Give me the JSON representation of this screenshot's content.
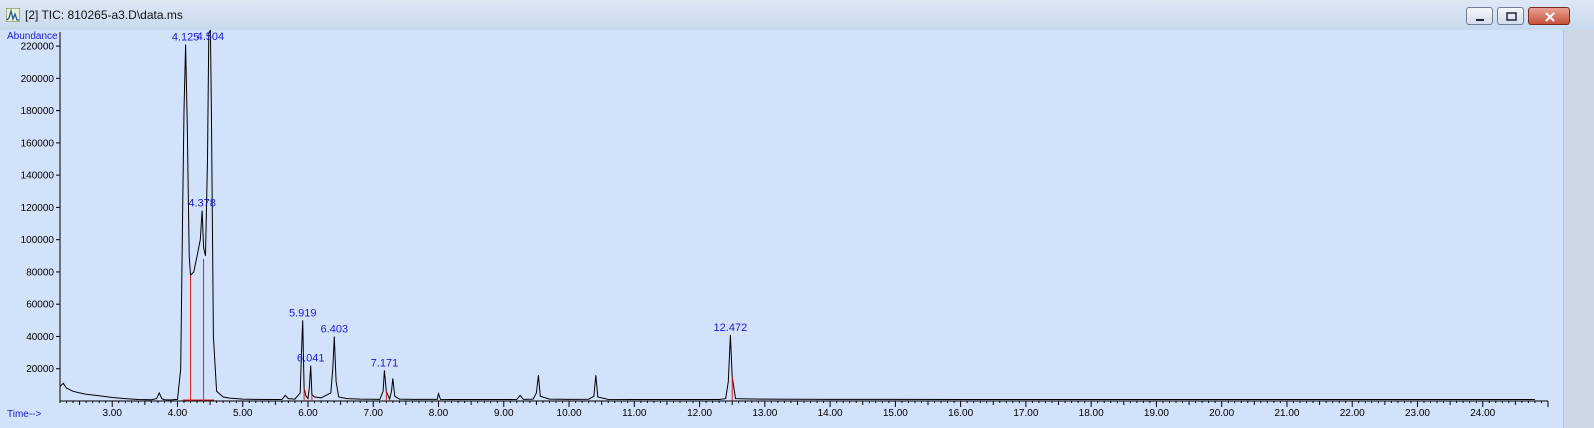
{
  "window": {
    "title": "[2] TIC: 810265-a3.D\\data.ms",
    "icon": "chromatogram-app-icon",
    "buttons": [
      "minimize",
      "restore",
      "close"
    ]
  },
  "chart_data": {
    "type": "line",
    "title": "",
    "ylabel": "Abundance",
    "xlabel": "Time-->",
    "xlim": [
      2.2,
      25.0
    ],
    "ylim": [
      0,
      225000
    ],
    "x_ticks": [
      "3.00",
      "4.00",
      "5.00",
      "6.00",
      "7.00",
      "8.00",
      "9.00",
      "10.00",
      "11.00",
      "12.00",
      "13.00",
      "14.00",
      "15.00",
      "16.00",
      "17.00",
      "18.00",
      "19.00",
      "20.00",
      "21.00",
      "22.00",
      "23.00",
      "24.00"
    ],
    "y_ticks": [
      "20000",
      "40000",
      "60000",
      "80000",
      "100000",
      "120000",
      "140000",
      "160000",
      "180000",
      "200000",
      "220000"
    ],
    "grid": false,
    "colors": {
      "trace": "#000000",
      "label": "#1a1ad8",
      "integration": "#e02020",
      "background": "#d3e2fb"
    },
    "series": [
      {
        "x": [
          2.2,
          2.25,
          2.3,
          2.4,
          2.5,
          2.6,
          2.8,
          3.0,
          3.2,
          3.4,
          3.6,
          3.68,
          3.72,
          3.76,
          3.8,
          3.9,
          4.0,
          4.05,
          4.08,
          4.1,
          4.125,
          4.15,
          4.18,
          4.2,
          4.25,
          4.3,
          4.35,
          4.378,
          4.4,
          4.43,
          4.46,
          4.48,
          4.504,
          4.52,
          4.55,
          4.6,
          4.7,
          4.8,
          5.0,
          5.2,
          5.4,
          5.6,
          5.65,
          5.7,
          5.8,
          5.88,
          5.9,
          5.919,
          5.94,
          5.97,
          6.0,
          6.02,
          6.041,
          6.06,
          6.1,
          6.2,
          6.35,
          6.38,
          6.403,
          6.43,
          6.47,
          6.6,
          6.8,
          7.0,
          7.1,
          7.15,
          7.171,
          7.2,
          7.25,
          7.28,
          7.3,
          7.33,
          7.4,
          7.6,
          7.98,
          8.0,
          8.03,
          8.2,
          8.5,
          8.8,
          9.1,
          9.2,
          9.25,
          9.3,
          9.45,
          9.5,
          9.53,
          9.56,
          9.7,
          10.0,
          10.3,
          10.38,
          10.41,
          10.44,
          10.6,
          11.0,
          11.5,
          12.0,
          12.3,
          12.4,
          12.44,
          12.472,
          12.5,
          12.55,
          12.7,
          13.0,
          13.5,
          14.0,
          14.5,
          15.0,
          16.0,
          17.0,
          18.0,
          19.0,
          20.0,
          21.0,
          22.0,
          23.0,
          24.0,
          24.8
        ],
        "y": [
          9000,
          11000,
          8000,
          6000,
          5000,
          4200,
          3200,
          2200,
          1500,
          900,
          800,
          1500,
          5000,
          1500,
          800,
          700,
          1000,
          20000,
          120000,
          180000,
          221000,
          170000,
          90000,
          78000,
          80000,
          90000,
          100000,
          118000,
          95000,
          90000,
          150000,
          228000,
          230000,
          180000,
          40000,
          6000,
          2500,
          1800,
          1200,
          1000,
          900,
          900,
          3500,
          1500,
          1200,
          5000,
          30000,
          50000,
          8000,
          3000,
          1500,
          8000,
          22000,
          4000,
          2500,
          2000,
          5000,
          20000,
          40000,
          12000,
          2500,
          1500,
          1200,
          1100,
          1000,
          6000,
          19000,
          6000,
          1200,
          6000,
          14000,
          3000,
          1200,
          1000,
          1000,
          4500,
          1000,
          900,
          900,
          900,
          900,
          1000,
          3500,
          1000,
          1200,
          5000,
          16000,
          3000,
          1200,
          1000,
          1100,
          3000,
          16000,
          2500,
          1000,
          900,
          900,
          900,
          900,
          1500,
          12000,
          41000,
          15000,
          1500,
          1300,
          1200,
          1100,
          1000,
          1000,
          1000,
          900,
          900,
          900,
          900,
          900,
          900,
          900,
          900,
          900,
          900
        ]
      }
    ],
    "peak_labels": [
      {
        "x": 4.125,
        "text": "4.125"
      },
      {
        "x": 4.504,
        "text": "4.504"
      },
      {
        "x": 4.378,
        "text": "4.378"
      },
      {
        "x": 5.919,
        "text": "5.919"
      },
      {
        "x": 6.041,
        "text": "6.041"
      },
      {
        "x": 6.403,
        "text": "6.403"
      },
      {
        "x": 7.171,
        "text": "7.171"
      },
      {
        "x": 12.472,
        "text": "12.472"
      }
    ],
    "integration_marks": [
      {
        "x": 4.2,
        "y": 78000
      },
      {
        "x": 4.4,
        "y": 88000
      },
      {
        "x": 5.94,
        "y": 8000
      },
      {
        "x": 6.06,
        "y": 4000
      },
      {
        "x": 7.2,
        "y": 6000
      },
      {
        "x": 12.5,
        "y": 15000
      }
    ]
  }
}
